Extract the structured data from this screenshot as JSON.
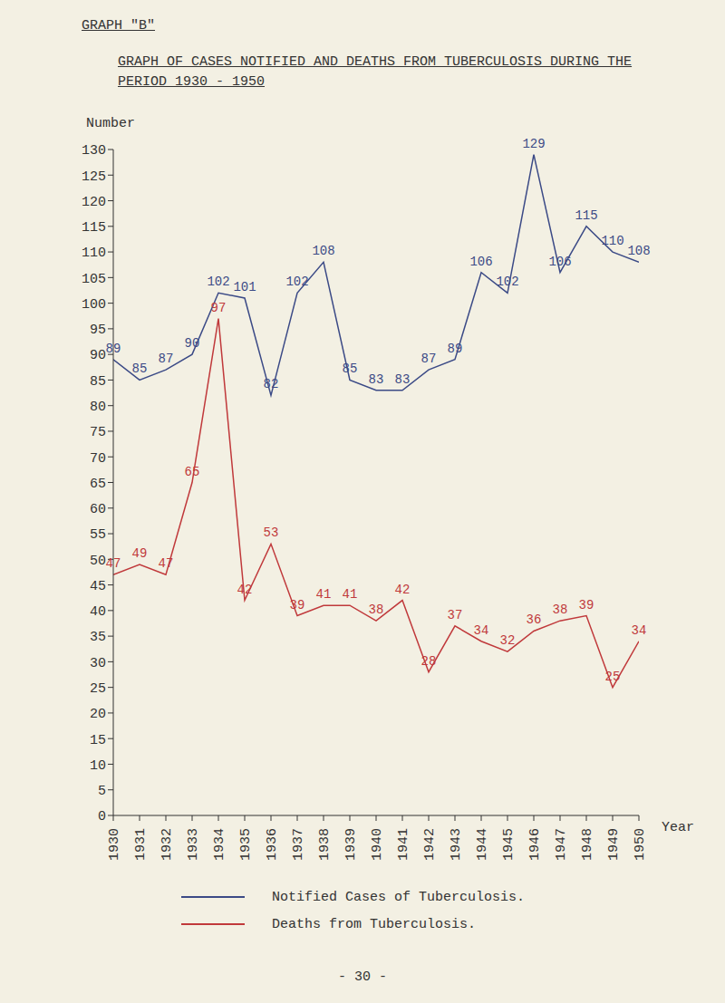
{
  "chart_data": {
    "type": "line",
    "title": "GRAPH OF CASES NOTIFIED AND DEATHS FROM TUBERCULOSIS DURING THE PERIOD 1930 - 1950",
    "supertitle": "GRAPH \"B\"",
    "footer": "- 30 -",
    "x_label": "Year",
    "y_label": "Number",
    "x": [
      1930,
      1931,
      1932,
      1933,
      1934,
      1935,
      1936,
      1937,
      1938,
      1939,
      1940,
      1941,
      1942,
      1943,
      1944,
      1945,
      1946,
      1947,
      1948,
      1949,
      1950
    ],
    "xlim": [
      1930,
      1950
    ],
    "xticks": [
      1930,
      1931,
      1932,
      1933,
      1934,
      1935,
      1936,
      1937,
      1938,
      1939,
      1940,
      1941,
      1942,
      1943,
      1944,
      1945,
      1946,
      1947,
      1948,
      1949,
      1950
    ],
    "ylim": [
      0,
      130
    ],
    "yticks": [
      0,
      5,
      10,
      15,
      20,
      25,
      30,
      35,
      40,
      45,
      50,
      55,
      60,
      65,
      70,
      75,
      80,
      85,
      90,
      95,
      100,
      105,
      110,
      115,
      120,
      125,
      130
    ],
    "grid": false,
    "data_labels": true,
    "legend": "bottom",
    "series": [
      {
        "name": "Notified Cases of Tuberculosis.",
        "color": "#3b4a86",
        "values": [
          89,
          85,
          87,
          90,
          102,
          101,
          82,
          102,
          108,
          85,
          83,
          83,
          87,
          89,
          106,
          102,
          129,
          106,
          115,
          110,
          108
        ]
      },
      {
        "name": "Deaths from Tuberculosis.",
        "color": "#c0393b",
        "values": [
          47,
          49,
          47,
          65,
          97,
          42,
          53,
          39,
          41,
          41,
          38,
          42,
          28,
          37,
          34,
          32,
          36,
          38,
          39,
          25,
          34
        ]
      }
    ]
  }
}
